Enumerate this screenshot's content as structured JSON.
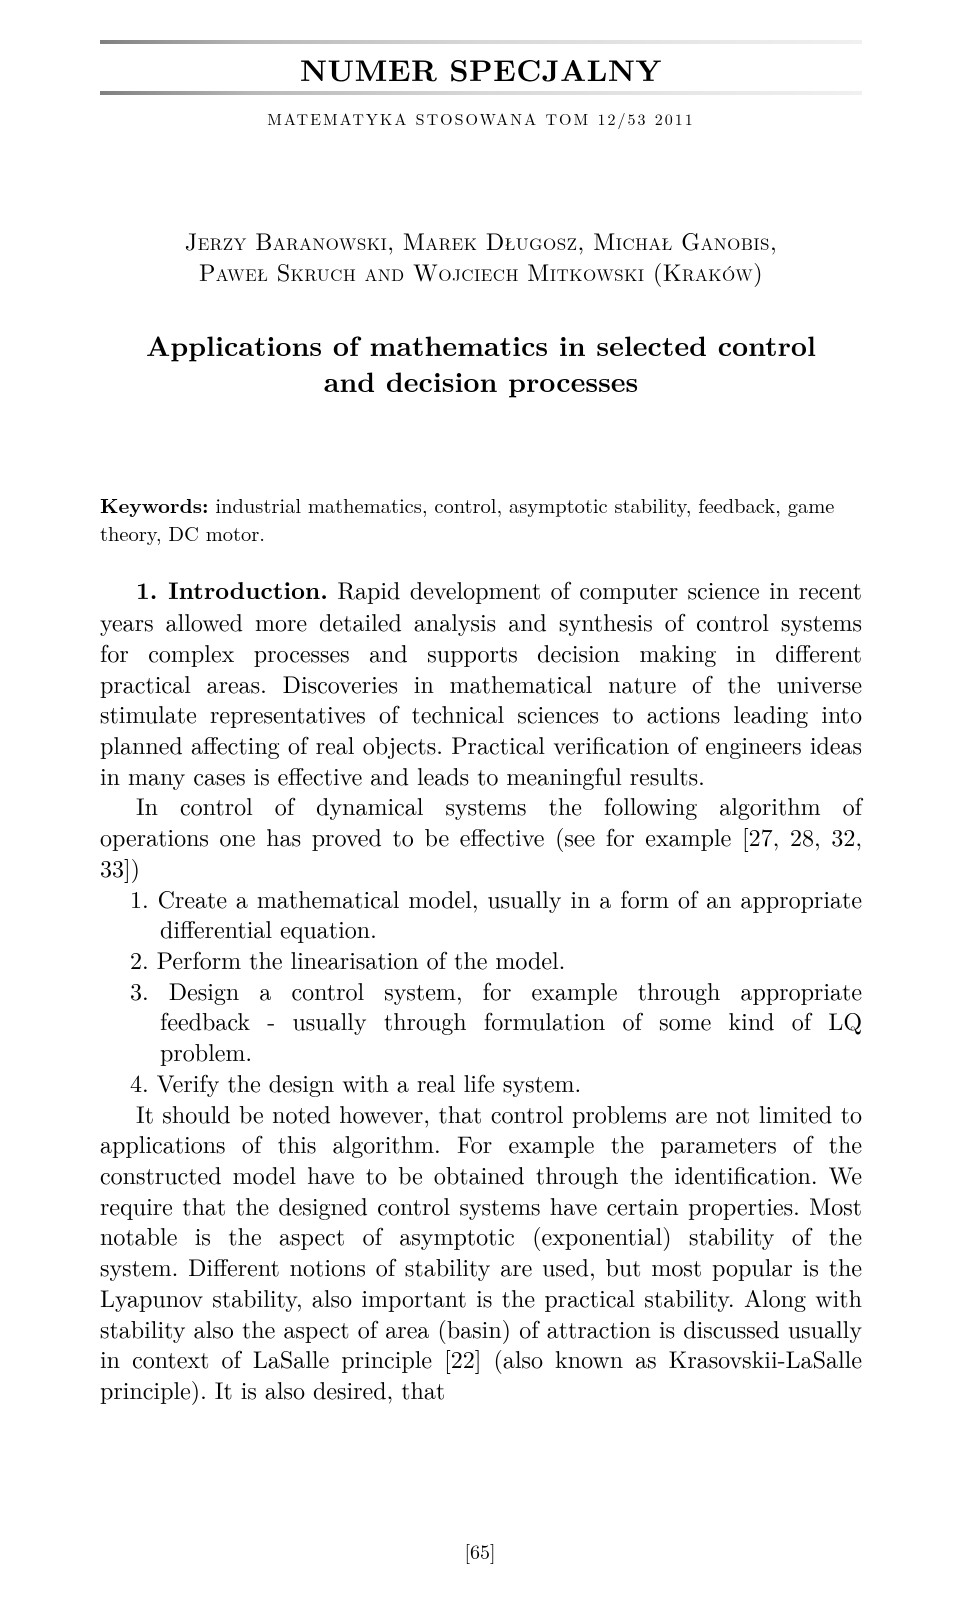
{
  "header": {
    "series": "NUMER SPECJALNY",
    "journal": "MATEMATYKA STOSOWANA TOM 12/53 2011"
  },
  "authors": {
    "line1": "Jerzy Baranowski, Marek Długosz, Michał Ganobis,",
    "line2": "Paweł Skruch and Wojciech Mitkowski (Kraków)"
  },
  "title": {
    "line1": "Applications of mathematics in selected control",
    "line2": "and decision processes"
  },
  "keywords": {
    "label": "Keywords:",
    "text": " industrial mathematics, control, asymptotic stability, feedback, game theory, DC motor."
  },
  "section": {
    "label": "1. Introduction.",
    "p1a": " Rapid development of computer science in recent years allowed more detailed analysis and synthesis of control systems for complex processes and supports decision making in different practical areas. Discoveries in mathematical nature of the universe stimulate representatives of technical sciences to actions leading into planned affecting of real objects. Practical verification of engineers ideas in many cases is effective and leads to meaningful results.",
    "p2": "In control of dynamical systems the following algorithm of operations one has proved to be effective (see for example [27, 28, 32, 33])",
    "items": {
      "i1": "1. Create a mathematical model, usually in a form of an appropriate differential equation.",
      "i2": "2. Perform the linearisation of the model.",
      "i3": "3. Design a control system, for example through appropriate feedback - usually through formulation of some kind of LQ problem.",
      "i4": "4. Verify the design with a real life system."
    },
    "p3": "It should be noted however, that control problems are not limited to applications of this algorithm. For example the parameters of the constructed model have to be obtained through the identification. We require that the designed control systems have certain properties. Most notable is the aspect of asymptotic (exponential) stability of the system. Different notions of stability are used, but most popular is the Lyapunov stability, also important is the practical stability. Along with stability also the aspect of area (basin) of attraction is discussed usually in context of LaSalle principle [22] (also known as Krasovskii-LaSalle principle). It is also desired, that"
  },
  "pagenum": "[65]"
}
